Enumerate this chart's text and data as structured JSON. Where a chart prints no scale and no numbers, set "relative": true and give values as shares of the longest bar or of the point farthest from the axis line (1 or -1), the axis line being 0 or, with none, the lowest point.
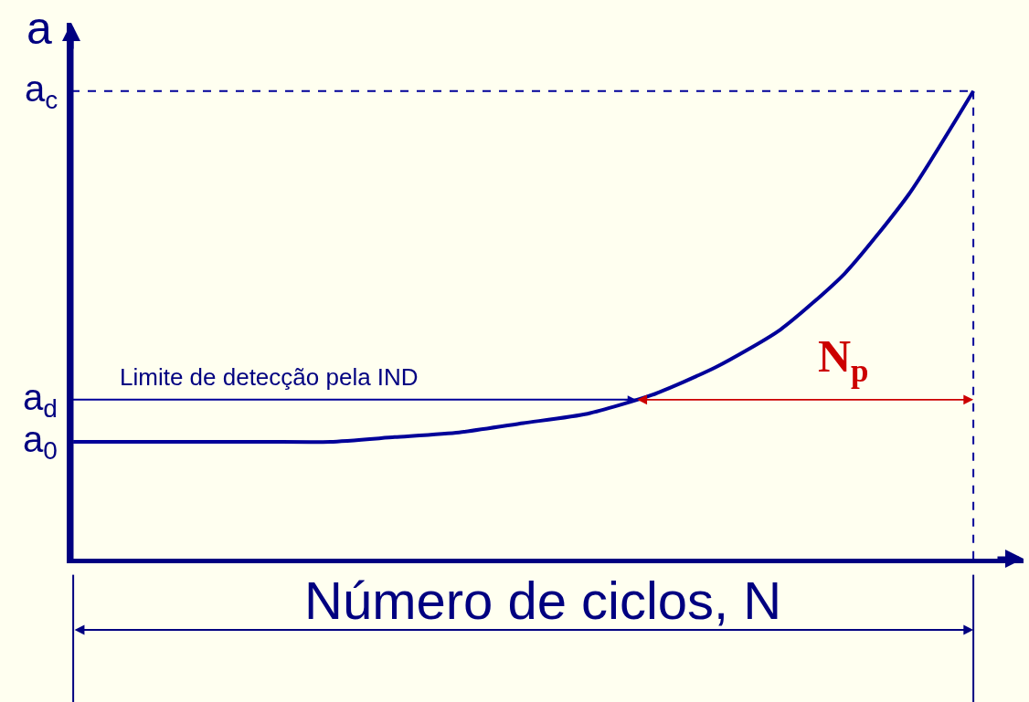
{
  "chart_data": {
    "type": "line",
    "relative": true,
    "ylabel": "a",
    "xlabel": "Número de ciclos, N",
    "categories": [
      null,
      null,
      null,
      null,
      null,
      null,
      null,
      null,
      null,
      null,
      null,
      null,
      null,
      null,
      null
    ],
    "series": [
      {
        "color": "#000099",
        "values": [
          0.25,
          0.25,
          0.25,
          0.25,
          0.25,
          0.26,
          0.27,
          0.29,
          0.31,
          0.35,
          0.41,
          0.49,
          0.61,
          0.78,
          1
        ]
      }
    ],
    "ref_lines": [
      {
        "axis": "y",
        "value": 1,
        "label": "a$_{c}$",
        "line_style": "dashed",
        "color": "#000099"
      },
      {
        "axis": "y",
        "value": 0.34,
        "label": "a$_{d}$",
        "line_style": "solid",
        "color": "#000099"
      }
    ],
    "annotations": [
      "a$_{0}$",
      "Limite de detecção pela IND",
      "N$_{p}$"
    ],
    "marker": "none",
    "line_style": "solid"
  }
}
